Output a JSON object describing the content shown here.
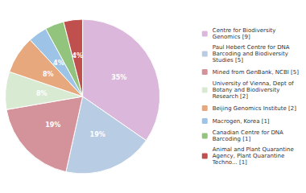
{
  "chart_data": {
    "type": "pie",
    "categories": [
      "Centre for Biodiversity\nGenomics [9]",
      "Paul Hebert Centre for DNA\nBarcoding and Biodiversity\nStudies [5]",
      "Mined from GenBank, NCBI [5]",
      "University of Vienna, Dept of\nBotany and Biodiversity\nResearch [2]",
      "Beijing Genomics Institute [2]",
      "Macrogen, Korea [1]",
      "Canadian Centre for DNA\nBarcoding [1]",
      "Animal and Plant Quarantine\nAgency, Plant Quarantine\nTechno... [1]"
    ],
    "values": [
      35,
      19,
      19,
      8,
      8,
      4,
      4,
      4
    ],
    "value_labels": [
      "35%",
      "19%",
      "19%",
      "8%",
      "8%",
      "4%",
      "4%",
      "4%"
    ],
    "colors": [
      "#dbb8db",
      "#b8cce4",
      "#d4929a",
      "#d9ead3",
      "#e6a87c",
      "#9dc3e6",
      "#93c47d",
      "#c0504d"
    ],
    "data_labels": true,
    "legend": "right"
  }
}
